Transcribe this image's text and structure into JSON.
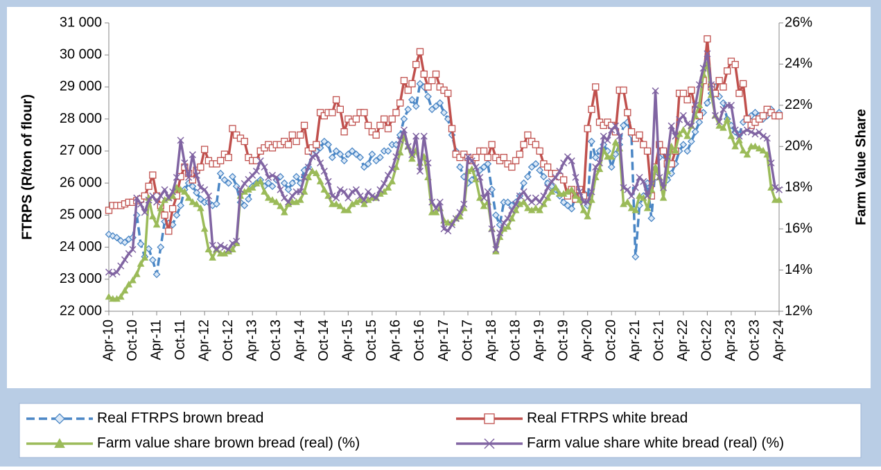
{
  "chart_data": {
    "type": "line",
    "y_label": "FTRPS (R/ton of flour)",
    "y2_label": "Farm Value Share",
    "legend": "bottom",
    "ylim": [
      22000,
      31000
    ],
    "yticks": [
      {
        "value": 22000,
        "label": "22 000"
      },
      {
        "value": 23000,
        "label": "23 000"
      },
      {
        "value": 24000,
        "label": "24 000"
      },
      {
        "value": 25000,
        "label": "25 000"
      },
      {
        "value": 26000,
        "label": "26 000"
      },
      {
        "value": 27000,
        "label": "27 000"
      },
      {
        "value": 28000,
        "label": "28 000"
      },
      {
        "value": 29000,
        "label": "29 000"
      },
      {
        "value": 30000,
        "label": "30 000"
      },
      {
        "value": 31000,
        "label": "31 000"
      }
    ],
    "y2lim": [
      12,
      26
    ],
    "y2ticks": [
      {
        "value": 12,
        "label": "12%"
      },
      {
        "value": 14,
        "label": "14%"
      },
      {
        "value": 16,
        "label": "16%"
      },
      {
        "value": 18,
        "label": "18%"
      },
      {
        "value": 20,
        "label": "20%"
      },
      {
        "value": 22,
        "label": "22%"
      },
      {
        "value": 24,
        "label": "24%"
      },
      {
        "value": 26,
        "label": "26%"
      }
    ],
    "categories": [
      "Apr-10",
      null,
      null,
      null,
      null,
      null,
      "Oct-10",
      null,
      null,
      null,
      null,
      null,
      "Apr-11",
      null,
      null,
      null,
      null,
      null,
      "Oct-11",
      null,
      null,
      null,
      null,
      null,
      "Apr-12",
      null,
      null,
      null,
      null,
      null,
      "Oct-12",
      null,
      null,
      null,
      null,
      null,
      "Apr-13",
      null,
      null,
      null,
      null,
      null,
      "Oct-13",
      null,
      null,
      null,
      null,
      null,
      "Apr-14",
      null,
      null,
      null,
      null,
      null,
      "Oct-14",
      null,
      null,
      null,
      null,
      null,
      "Apr-15",
      null,
      null,
      null,
      null,
      null,
      "Oct-15",
      null,
      null,
      null,
      null,
      null,
      "Apr-16",
      null,
      null,
      null,
      null,
      null,
      "Oct-16",
      null,
      null,
      null,
      null,
      null,
      "Apr-17",
      null,
      null,
      null,
      null,
      null,
      "Oct-17",
      null,
      null,
      null,
      null,
      null,
      "Apr-18",
      null,
      null,
      null,
      null,
      null,
      "Oct-18",
      null,
      null,
      null,
      null,
      null,
      "Apr-19",
      null,
      null,
      null,
      null,
      null,
      "Oct-19",
      null,
      null,
      null,
      null,
      null,
      "Apr-20",
      null,
      null,
      null,
      null,
      null,
      "Oct-20",
      null,
      null,
      null,
      null,
      null,
      "Apr-21",
      null,
      null,
      null,
      null,
      null,
      "Oct-21",
      null,
      null,
      null,
      null,
      null,
      "Apr-22",
      null,
      null,
      null,
      null,
      null,
      "Oct-22",
      null,
      null,
      null,
      null,
      null,
      "Apr-23",
      null,
      null,
      null,
      null,
      null,
      "Oct-23",
      null,
      null,
      null,
      null,
      null,
      "Apr-24"
    ],
    "series": [
      {
        "name": "Real FTRPS brown bread",
        "color": "#4a86c5",
        "marker": "diamond",
        "dash": true,
        "values": [
          24400,
          24350,
          24300,
          24200,
          24150,
          24250,
          24300,
          25000,
          24100,
          23700,
          23950,
          23600,
          23150,
          24000,
          24800,
          24750,
          24700,
          25000,
          25300,
          25800,
          26000,
          25900,
          25700,
          25500,
          25400,
          25400,
          25300,
          25350,
          26300,
          26100,
          26000,
          26200,
          25900,
          25400,
          25300,
          25500,
          25900,
          26000,
          26100,
          25900,
          26000,
          25900,
          26100,
          26200,
          26000,
          25800,
          26000,
          26200,
          26000,
          26400,
          26500,
          26900,
          27000,
          27100,
          27300,
          27200,
          26800,
          27000,
          26900,
          26700,
          26900,
          27000,
          26900,
          26800,
          26500,
          26600,
          26900,
          26700,
          26800,
          27000,
          27000,
          27200,
          27200,
          27500,
          28000,
          28300,
          28600,
          28400,
          29100,
          29000,
          28700,
          28300,
          28400,
          28500,
          28200,
          28000,
          27500,
          27000,
          26500,
          26200,
          26000,
          26100,
          26300,
          26400,
          26500,
          26600,
          25800,
          25000,
          24700,
          25400,
          25400,
          25300,
          25400,
          25600,
          26000,
          26200,
          26500,
          26600,
          26400,
          26200,
          26000,
          25900,
          25800,
          25600,
          25400,
          25300,
          25200,
          25600,
          25800,
          25700,
          25300,
          27300,
          26800,
          27000,
          27200,
          27000,
          26500,
          26900,
          27200,
          27800,
          27900,
          27500,
          23700,
          25300,
          25600,
          26000,
          24900,
          26500,
          26800,
          27000,
          26100,
          26300,
          26600,
          27000,
          27200,
          27000,
          27300,
          27600,
          27900,
          28200,
          28500,
          28800,
          29000,
          28700,
          28500,
          28000,
          27800,
          27600,
          27500,
          27900,
          28000,
          28100,
          28200,
          28100,
          28000,
          28100,
          28300,
          28100,
          28200
        ]
      },
      {
        "name": "Real FTRPS white bread",
        "color": "#c0504d",
        "marker": "square",
        "values": [
          25150,
          25300,
          25300,
          25300,
          25350,
          25400,
          25400,
          25450,
          25500,
          25600,
          25900,
          26250,
          25600,
          25300,
          25000,
          24500,
          25200,
          25600,
          26200,
          26500,
          26300,
          26100,
          26400,
          26500,
          27050,
          26700,
          26600,
          26600,
          26700,
          26900,
          26800,
          27700,
          27500,
          27400,
          27300,
          26800,
          26700,
          26700,
          27000,
          27100,
          27200,
          27100,
          27200,
          27200,
          27300,
          27200,
          27500,
          27300,
          27500,
          27800,
          27000,
          27100,
          27200,
          28200,
          28100,
          28200,
          28200,
          28600,
          28300,
          27600,
          28000,
          27900,
          28000,
          28200,
          28200,
          27800,
          27600,
          27500,
          27800,
          28000,
          27700,
          28000,
          28200,
          28500,
          29200,
          28900,
          29100,
          29700,
          30100,
          29400,
          29000,
          29200,
          29400,
          29000,
          28900,
          28800,
          27700,
          26900,
          26800,
          26900,
          26800,
          26700,
          26800,
          27000,
          27000,
          26800,
          27200,
          26800,
          26700,
          26800,
          26600,
          26500,
          26700,
          26900,
          27200,
          27500,
          27300,
          27200,
          27000,
          26600,
          26500,
          26300,
          26300,
          26200,
          26100,
          25600,
          25800,
          25500,
          25800,
          25600,
          27700,
          28300,
          29000,
          27900,
          27800,
          27900,
          27800,
          27600,
          28900,
          28900,
          28200,
          27600,
          27400,
          27500,
          27200,
          27000,
          25600,
          26500,
          27200,
          27000,
          26600,
          26600,
          27000,
          28800,
          28800,
          28600,
          28900,
          28300,
          28100,
          29200,
          30500,
          29000,
          28800,
          29200,
          29000,
          29500,
          29800,
          29700,
          28800,
          29100,
          28000,
          27800,
          27900,
          28000,
          28100,
          28300,
          28200,
          28100,
          28100
        ]
      },
      {
        "name": "Farm value share brown bread (real) (%)",
        "color": "#9bbb59",
        "marker": "triangle",
        "axis": "y2",
        "values": [
          12.7,
          12.6,
          12.6,
          12.7,
          13.0,
          13.3,
          13.5,
          13.8,
          14.3,
          14.6,
          17.5,
          16.6,
          16.2,
          17.0,
          17.4,
          17.5,
          17.6,
          18.0,
          17.9,
          17.8,
          17.5,
          17.3,
          17.2,
          17.0,
          16.0,
          15.0,
          14.6,
          15.0,
          14.8,
          14.8,
          14.9,
          15.0,
          15.3,
          17.6,
          17.8,
          17.9,
          18.0,
          18.2,
          18.3,
          17.8,
          17.5,
          17.4,
          17.3,
          17.1,
          16.8,
          17.2,
          17.3,
          17.3,
          17.4,
          17.8,
          18.5,
          18.8,
          18.7,
          18.3,
          17.9,
          17.6,
          17.2,
          17.2,
          17.1,
          16.9,
          16.9,
          17.2,
          17.3,
          17.4,
          17.2,
          17.4,
          17.5,
          17.5,
          17.7,
          17.8,
          18.0,
          18.3,
          19.0,
          19.7,
          20.5,
          20.0,
          19.4,
          19.8,
          19.2,
          19.5,
          18.5,
          16.8,
          16.8,
          17.0,
          16.4,
          16.3,
          16.3,
          16.5,
          16.6,
          17.0,
          18.8,
          18.9,
          18.4,
          17.5,
          17.1,
          17.3,
          16.0,
          14.9,
          15.6,
          16.0,
          16.1,
          16.5,
          16.9,
          17.2,
          17.3,
          17.0,
          16.9,
          17.0,
          16.9,
          17.2,
          17.5,
          17.8,
          18.0,
          17.7,
          17.7,
          17.8,
          17.9,
          17.6,
          17.4,
          16.9,
          16.6,
          17.4,
          18.5,
          18.9,
          19.8,
          19.5,
          19.5,
          20.2,
          19.9,
          17.2,
          17.3,
          17.0,
          16.9,
          17.6,
          17.5,
          17.0,
          17.9,
          19.0,
          18.5,
          17.5,
          18.8,
          20.0,
          19.8,
          20.6,
          20.8,
          20.5,
          21.0,
          21.5,
          22.0,
          23.5,
          24.0,
          22.5,
          21.5,
          21.0,
          20.9,
          21.3,
          20.5,
          20.0,
          20.3,
          19.8,
          19.6,
          20.0,
          20.0,
          19.9,
          19.8,
          19.6,
          18.0,
          17.4,
          17.4
        ]
      },
      {
        "name": "Farm value share white bread (real) (%)",
        "color": "#8064a2",
        "marker": "x",
        "axis": "y2",
        "values": [
          13.9,
          13.8,
          13.9,
          14.2,
          14.5,
          14.8,
          15.0,
          17.5,
          17.2,
          16.8,
          17.4,
          17.6,
          17.3,
          17.6,
          17.9,
          17.5,
          17.8,
          18.5,
          20.3,
          19.2,
          18.5,
          19.6,
          18.6,
          18.0,
          17.9,
          17.6,
          15.2,
          15.0,
          15.2,
          15.1,
          15.0,
          15.3,
          15.4,
          17.9,
          18.2,
          18.4,
          18.6,
          18.8,
          19.3,
          19.0,
          18.5,
          18.6,
          18.5,
          17.9,
          17.5,
          17.3,
          17.6,
          17.8,
          17.8,
          18.5,
          19.0,
          19.5,
          19.6,
          19.2,
          18.8,
          18.3,
          17.6,
          17.5,
          17.9,
          17.8,
          17.5,
          17.8,
          17.9,
          17.6,
          17.4,
          17.8,
          17.6,
          17.5,
          17.9,
          18.2,
          18.6,
          18.9,
          19.5,
          20.3,
          20.8,
          20.0,
          19.6,
          20.5,
          18.8,
          20.5,
          19.2,
          17.3,
          17.0,
          17.3,
          16.0,
          15.9,
          16.2,
          16.5,
          16.8,
          17.2,
          19.5,
          19.3,
          19.0,
          18.5,
          17.5,
          17.8,
          16.0,
          15.0,
          15.8,
          16.3,
          16.5,
          16.9,
          17.2,
          17.6,
          17.8,
          17.5,
          17.3,
          17.5,
          17.3,
          17.6,
          18.0,
          18.3,
          18.5,
          18.8,
          19.2,
          19.5,
          19.3,
          18.5,
          17.8,
          17.3,
          17.3,
          17.8,
          19.0,
          19.2,
          20.5,
          20.3,
          20.8,
          21.0,
          20.5,
          18.0,
          17.9,
          17.6,
          18.0,
          18.5,
          18.3,
          17.6,
          18.2,
          22.7,
          18.5,
          18.0,
          19.5,
          21.0,
          20.5,
          21.3,
          21.5,
          21.1,
          21.0,
          22.0,
          23.0,
          23.8,
          24.5,
          23.0,
          21.5,
          21.2,
          21.8,
          22.0,
          22.0,
          20.8,
          20.5,
          20.7,
          20.8,
          20.7,
          20.6,
          20.7,
          20.5,
          20.4,
          19.2,
          18.0,
          17.9
        ]
      }
    ]
  }
}
